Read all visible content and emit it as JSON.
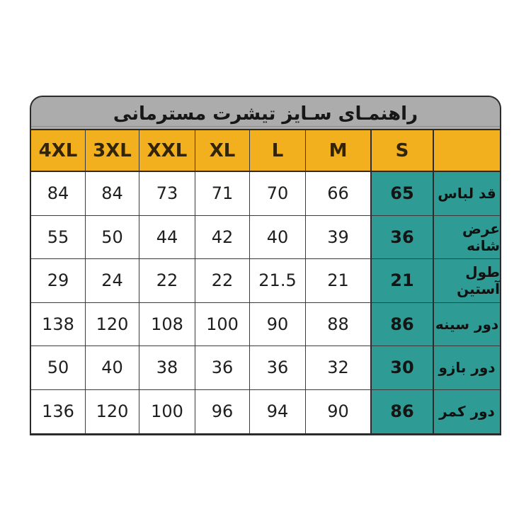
{
  "chart_data": {
    "type": "table",
    "title": "راهنمـای سـایز تیشرت مسترمانی",
    "column_headers": [
      "4XL",
      "3XL",
      "XXL",
      "XL",
      "L",
      "M",
      "S"
    ],
    "corner_header": "",
    "rows": [
      {
        "label": "قد لباس",
        "values": [
          84,
          84,
          73,
          71,
          70,
          66
        ],
        "s": 65
      },
      {
        "label": "عرض شانه",
        "values": [
          55,
          50,
          44,
          42,
          40,
          39
        ],
        "s": 36
      },
      {
        "label": "طول آستین",
        "values": [
          29,
          24,
          22,
          22,
          21.5,
          21
        ],
        "s": 21
      },
      {
        "label": "دور سینه",
        "values": [
          138,
          120,
          108,
          100,
          90,
          88
        ],
        "s": 86
      },
      {
        "label": "دور بازو",
        "values": [
          50,
          40,
          38,
          36,
          36,
          32
        ],
        "s": 30
      },
      {
        "label": "دور کمر",
        "values": [
          136,
          120,
          100,
          96,
          94,
          90
        ],
        "s": 86
      }
    ],
    "layout_hints": {
      "direction": "rtl",
      "highlighted_column": "S",
      "label_column_side": "right",
      "rounded_title_bar": true
    },
    "colors": {
      "title_bar_bg": "#ACACAC",
      "size_header_bg": "#F2B01E",
      "highlight_bg": "#2E9C95",
      "cell_bg": "#FFFFFF",
      "border": "#2B2B2B"
    }
  }
}
